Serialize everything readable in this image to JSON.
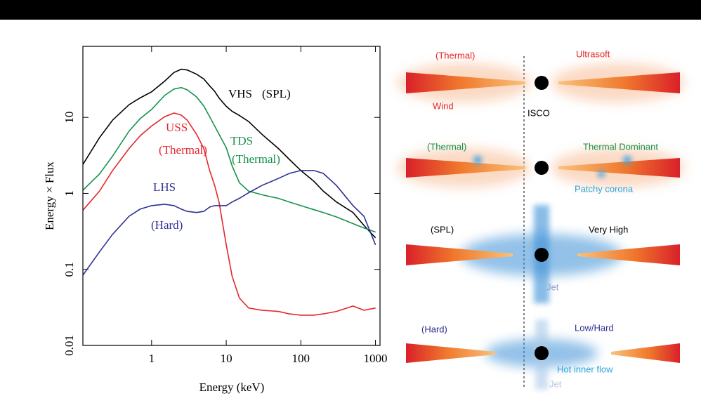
{
  "chart_data": {
    "type": "line",
    "xlabel": "Energy (keV)",
    "ylabel": "Energy × Flux",
    "xscale": "log",
    "yscale": "log",
    "xlim": [
      0.12,
      1150
    ],
    "ylim": [
      0.01,
      86
    ],
    "xticks": [
      1,
      10,
      100,
      1000
    ],
    "yticks": [
      0.01,
      0.1,
      1,
      10
    ],
    "x": [
      0.12,
      0.2,
      0.3,
      0.5,
      0.7,
      1,
      1.5,
      2,
      2.5,
      3,
      4,
      5,
      6,
      7,
      8,
      10,
      12,
      15,
      20,
      30,
      50,
      70,
      100,
      150,
      200,
      300,
      500,
      700,
      1000
    ],
    "series": [
      {
        "name": "VHS",
        "state": "(SPL)",
        "color": "#000000",
        "values": [
          2.4,
          5.4,
          9.2,
          14.7,
          18,
          21.7,
          30,
          39,
          43,
          42,
          37,
          32,
          26,
          22,
          18,
          14,
          12,
          10.6,
          8.8,
          6.0,
          3.9,
          2.8,
          2.0,
          1.44,
          1.07,
          0.77,
          0.56,
          0.38,
          0.26
        ]
      },
      {
        "name": "USS",
        "state": "(Thermal)",
        "color": "#e3262b",
        "values": [
          0.6,
          1.07,
          2.0,
          3.9,
          5.7,
          7.7,
          10.2,
          11.4,
          10.7,
          9.2,
          6.0,
          3.9,
          2.0,
          1.27,
          0.77,
          0.21,
          0.081,
          0.042,
          0.031,
          0.029,
          0.028,
          0.026,
          0.025,
          0.025,
          0.026,
          0.028,
          0.033,
          0.029,
          0.031
        ]
      },
      {
        "name": "TDS",
        "state": "(Thermal)",
        "color": "#15924a",
        "values": [
          1.1,
          1.8,
          3.1,
          6.6,
          9.6,
          12.7,
          19.5,
          23.6,
          24.7,
          23,
          18.6,
          14.1,
          10.2,
          7.7,
          6.0,
          4.0,
          2.3,
          1.38,
          1.07,
          0.96,
          0.86,
          0.77,
          0.69,
          0.61,
          0.56,
          0.49,
          0.4,
          0.35,
          0.31
        ]
      },
      {
        "name": "LHS",
        "state": "(Hard)",
        "color": "#2e3192",
        "values": [
          0.084,
          0.17,
          0.29,
          0.5,
          0.62,
          0.69,
          0.72,
          0.69,
          0.62,
          0.58,
          0.56,
          0.58,
          0.66,
          0.69,
          0.69,
          0.69,
          0.77,
          0.86,
          1.02,
          1.27,
          1.57,
          1.83,
          2.0,
          2.0,
          1.83,
          1.27,
          0.69,
          0.5,
          0.21
        ]
      }
    ]
  },
  "diagram": {
    "panels": [
      {
        "left": "(Thermal)",
        "right": "Ultrasoft",
        "notes": [
          "Wind",
          "ISCO"
        ]
      },
      {
        "left": "(Thermal)",
        "right": "Thermal Dominant",
        "notes": [
          "Patchy corona"
        ]
      },
      {
        "left": "(SPL)",
        "right": "Very High",
        "notes": [
          "Jet"
        ]
      },
      {
        "left": "(Hard)",
        "right": "Low/Hard",
        "notes": [
          "Hot inner flow",
          "Jet"
        ]
      }
    ]
  }
}
